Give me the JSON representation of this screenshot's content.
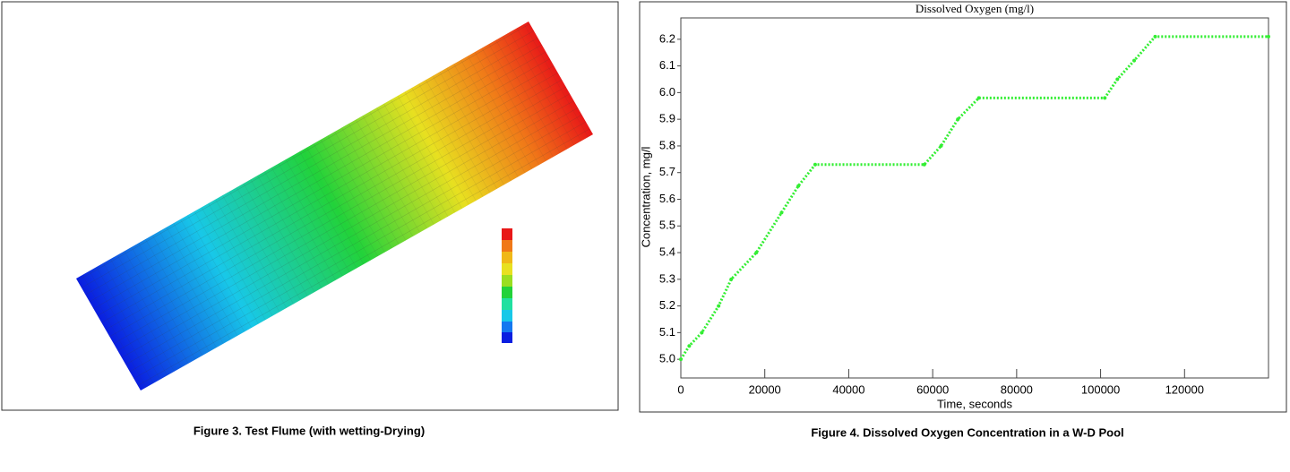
{
  "figures": [
    {
      "caption": "Figure 3. Test Flume (with wetting-Drying)"
    },
    {
      "caption": "Figure 4. Dissolved Oxygen Concentration in a W-D Pool"
    }
  ],
  "chart_data": {
    "type": "line",
    "title": "Dissolved Oxygen (mg/l)",
    "x_label": "Time, seconds",
    "y_label": "Concentration, mg/l",
    "x": [
      0,
      2000,
      5000,
      9000,
      12000,
      18000,
      24000,
      28000,
      32000,
      58000,
      62000,
      66000,
      71000,
      101000,
      104000,
      108000,
      113000,
      140000
    ],
    "series": [
      {
        "name": "Dissolved Oxygen",
        "color": "#33ee33",
        "values": [
          5.0,
          5.05,
          5.1,
          5.2,
          5.3,
          5.4,
          5.55,
          5.65,
          5.73,
          5.73,
          5.8,
          5.9,
          5.98,
          5.98,
          6.05,
          6.12,
          6.21,
          6.21
        ]
      }
    ],
    "xlim": [
      0,
      140000
    ],
    "ylim": [
      4.93,
      6.28
    ],
    "xticks": [
      0,
      20000,
      40000,
      60000,
      80000,
      100000,
      120000
    ],
    "yticks": [
      {
        "value": 5.0,
        "label": "5.0"
      },
      {
        "value": 5.1,
        "label": "5.1"
      },
      {
        "value": 5.2,
        "label": "5.2"
      },
      {
        "value": 5.3,
        "label": "5.3"
      },
      {
        "value": 5.4,
        "label": "5.4"
      },
      {
        "value": 5.5,
        "label": "5.5"
      },
      {
        "value": 5.6,
        "label": "5.6"
      },
      {
        "value": 5.7,
        "label": "5.7"
      },
      {
        "value": 5.8,
        "label": "5.8"
      },
      {
        "value": 5.9,
        "label": "5.9"
      },
      {
        "value": 6.0,
        "label": "6.0"
      },
      {
        "value": 6.1,
        "label": "6.1"
      },
      {
        "value": 6.2,
        "label": "6.2"
      }
    ],
    "grid": false
  }
}
